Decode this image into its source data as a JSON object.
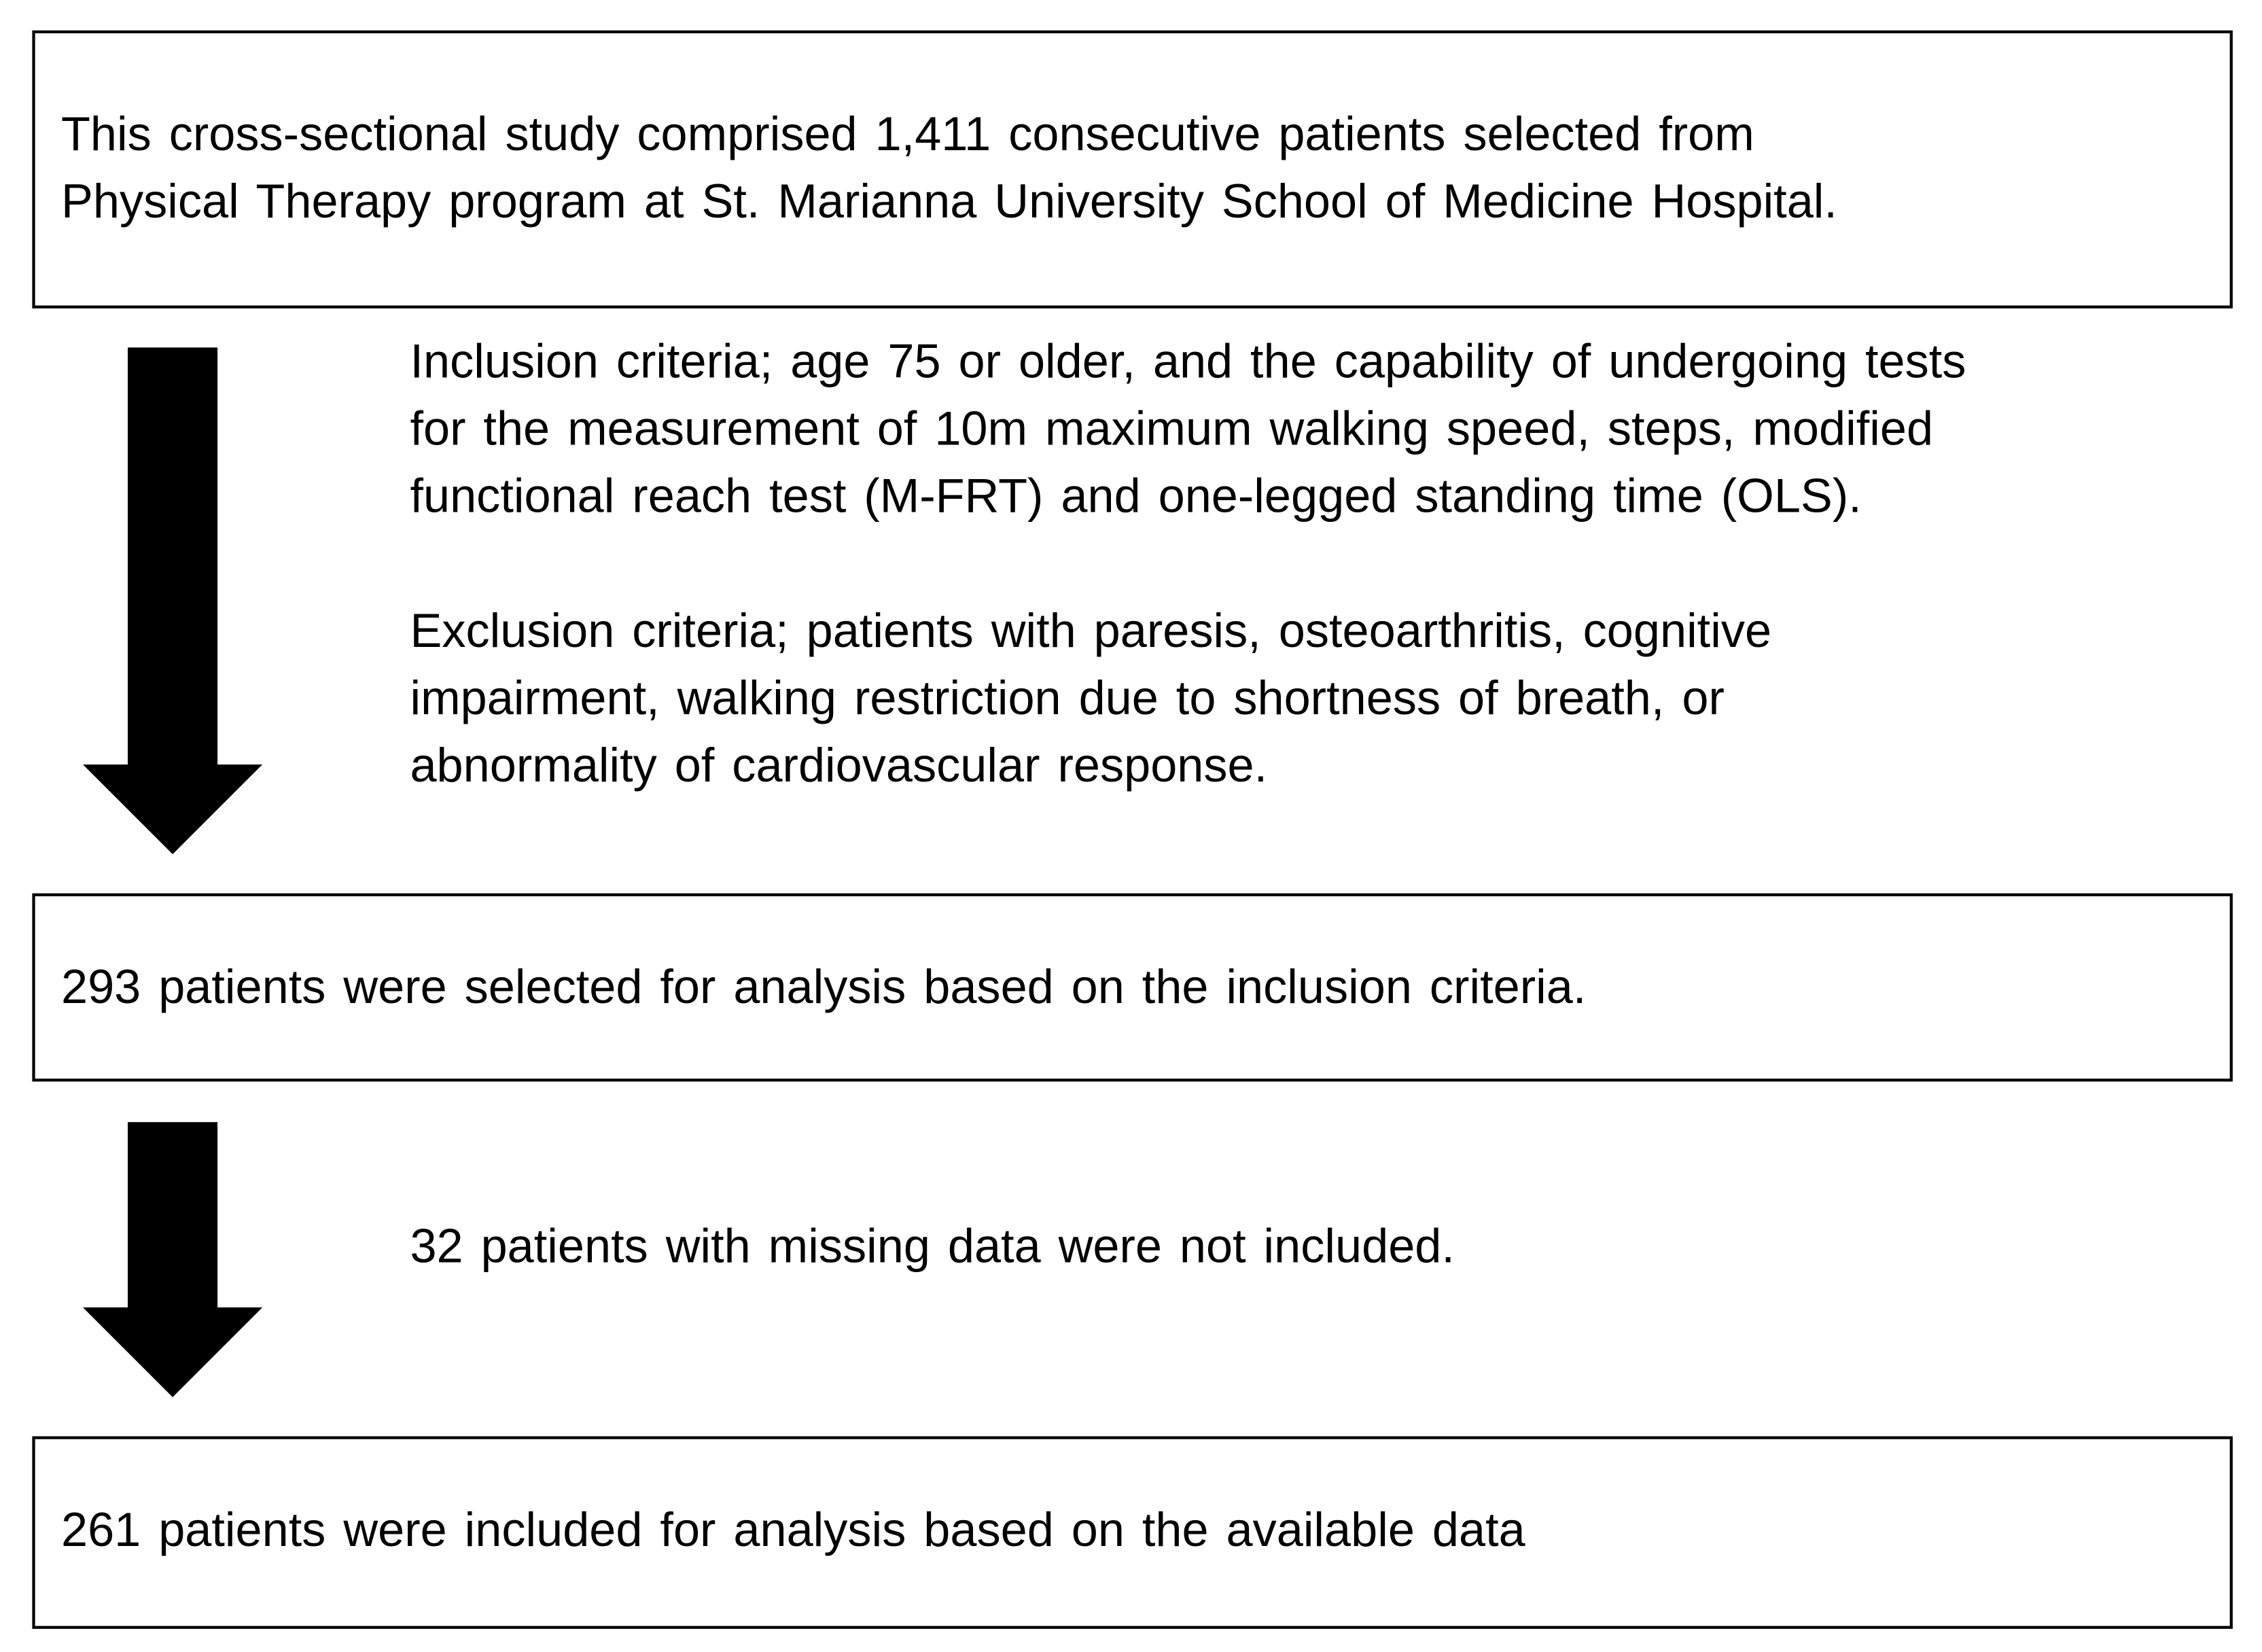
{
  "boxes": [
    {
      "lines": [
        "This cross-sectional study comprised 1,411 consecutive patients selected from",
        "Physical Therapy program at St. Marianna University School of Medicine Hospital."
      ]
    },
    {
      "lines": [
        "293 patients were selected for analysis based on the inclusion criteria."
      ]
    },
    {
      "lines": [
        "261 patients were included for analysis based on the available data"
      ]
    }
  ],
  "notes": [
    {
      "paragraphs": [
        {
          "lines": [
            "Inclusion criteria; age 75 or older, and the capability of undergoing tests",
            "for the measurement of 10m maximum walking speed, steps, modified",
            "functional reach test (M-FRT) and one-legged standing time (OLS)."
          ]
        },
        {
          "lines": [
            "Exclusion criteria; patients with paresis, osteoarthritis, cognitive",
            "impairment, walking restriction due to shortness of breath, or",
            "abnormality of cardiovascular response."
          ]
        }
      ]
    },
    {
      "paragraphs": [
        {
          "lines": [
            "32 patients with missing data were not included."
          ]
        }
      ]
    }
  ]
}
